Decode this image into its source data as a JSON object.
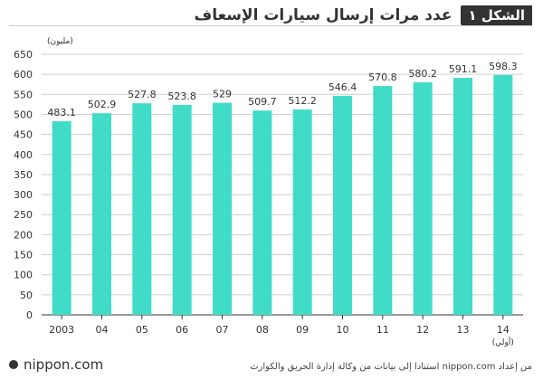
{
  "header": {
    "figure_label": "الشكل ١",
    "title": "عدد مرات إرسال سيارات الإسعاف"
  },
  "footer": {
    "logo": "nippon.com",
    "source": "من إعداد nippon.com استنادا إلى بيانات من وكالة إدارة الحريق والكوارث"
  },
  "chart_data": {
    "type": "bar",
    "title": "عدد مرات إرسال سيارات الإسعاف",
    "unit_label": "(مليون)",
    "categories": [
      "2003",
      "04",
      "05",
      "06",
      "07",
      "08",
      "09",
      "10",
      "11",
      "12",
      "13",
      "14"
    ],
    "category_note": {
      "index": 11,
      "text": "(أولي)"
    },
    "values": [
      483.1,
      502.9,
      527.8,
      523.8,
      529,
      509.7,
      512.2,
      546.4,
      570.8,
      580.2,
      591.1,
      598.3
    ],
    "value_labels": [
      "483.1",
      "502.9",
      "527.8",
      "523.8",
      "529",
      "509.7",
      "512.2",
      "546.4",
      "570.8",
      "580.2",
      "591.1",
      "598.3"
    ],
    "ylim": [
      0,
      650
    ],
    "yticks": [
      0,
      50,
      100,
      150,
      200,
      250,
      300,
      350,
      400,
      450,
      500,
      550,
      600,
      650
    ],
    "grid": true,
    "bar_color": "#40dcc8"
  }
}
